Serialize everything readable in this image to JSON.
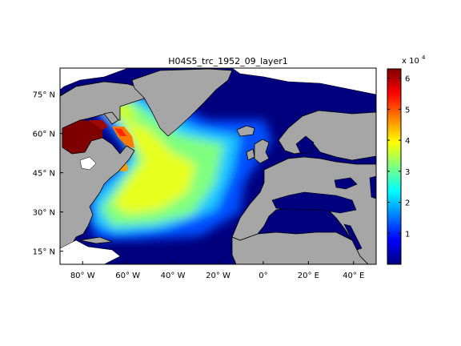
{
  "map": {
    "title": "H04S5_trc_1952_09_layer1",
    "lon_range": [
      -90,
      50
    ],
    "lat_range": [
      10,
      85
    ],
    "lon_ticks": [
      {
        "value": -80,
        "label": "80° W"
      },
      {
        "value": -60,
        "label": "60° W"
      },
      {
        "value": -40,
        "label": "40° W"
      },
      {
        "value": -20,
        "label": "20° W"
      },
      {
        "value": 0,
        "label": "0°"
      },
      {
        "value": 20,
        "label": "20° E"
      },
      {
        "value": 40,
        "label": "40° E"
      }
    ],
    "lat_ticks": [
      {
        "value": 15,
        "label": "15° N"
      },
      {
        "value": 30,
        "label": "30° N"
      },
      {
        "value": 45,
        "label": "45° N"
      },
      {
        "value": 60,
        "label": "60° N"
      },
      {
        "value": 75,
        "label": "75° N"
      }
    ],
    "colors": {
      "land": "#a6a6a6",
      "ocean_low": "#00007f",
      "coastline": "#000000"
    }
  },
  "colorbar": {
    "range": [
      0,
      6.3
    ],
    "ticks": [
      {
        "value": 1,
        "label": "1"
      },
      {
        "value": 2,
        "label": "2"
      },
      {
        "value": 3,
        "label": "3"
      },
      {
        "value": 4,
        "label": "4"
      },
      {
        "value": 5,
        "label": "5"
      },
      {
        "value": 6,
        "label": "6"
      }
    ],
    "multiplier_base": "x 10",
    "multiplier_exp": "4",
    "colormap": "jet"
  }
}
